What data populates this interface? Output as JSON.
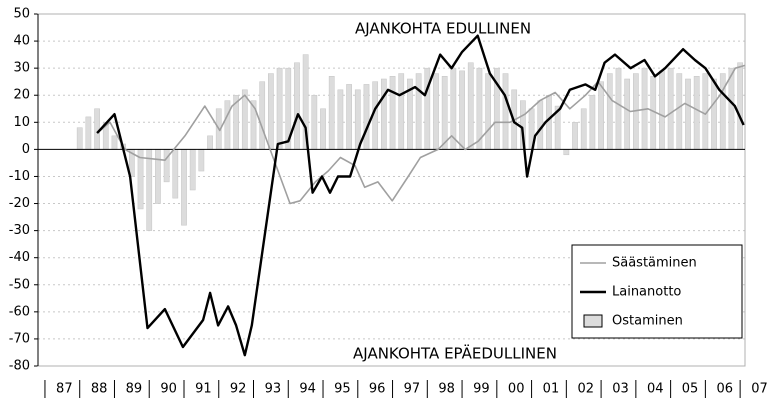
{
  "chart_data": {
    "type": "line",
    "annotations": [
      "AJANKOHTA EDULLINEN",
      "AJANKOHTA EPÄEDULLINEN"
    ],
    "ylim": [
      -80,
      50
    ],
    "yticks": [
      -80,
      -70,
      -60,
      -50,
      -40,
      -30,
      -20,
      -10,
      0,
      10,
      20,
      30,
      40,
      50
    ],
    "xlim": [
      1986.8,
      2007.14
    ],
    "xticks": [
      {
        "value": 1987.5,
        "label": "87"
      },
      {
        "value": 1988.5,
        "label": "88"
      },
      {
        "value": 1989.5,
        "label": "89"
      },
      {
        "value": 1990.5,
        "label": "90"
      },
      {
        "value": 1991.5,
        "label": "91"
      },
      {
        "value": 1992.5,
        "label": "92"
      },
      {
        "value": 1993.5,
        "label": "93"
      },
      {
        "value": 1994.5,
        "label": "94"
      },
      {
        "value": 1995.5,
        "label": "95"
      },
      {
        "value": 1996.5,
        "label": "96"
      },
      {
        "value": 1997.5,
        "label": "97"
      },
      {
        "value": 1998.5,
        "label": "98"
      },
      {
        "value": 1999.5,
        "label": "99"
      },
      {
        "value": 2000.5,
        "label": "00"
      },
      {
        "value": 2001.5,
        "label": "01"
      },
      {
        "value": 2002.5,
        "label": "02"
      },
      {
        "value": 2003.5,
        "label": "03"
      },
      {
        "value": 2004.5,
        "label": "04"
      },
      {
        "value": 2005.5,
        "label": "05"
      },
      {
        "value": 2006.5,
        "label": "06"
      },
      {
        "value": 2007.5,
        "label": "07"
      }
    ],
    "grid": true,
    "legend": "lower right",
    "series": [
      {
        "name": "Säästäminen",
        "kind": "line",
        "color": "#a0a0a0",
        "x": [
          1988.5,
          1988.87,
          1989.3,
          1989.73,
          1990.45,
          1991.03,
          1991.6,
          1992.03,
          1992.38,
          1992.75,
          1993.05,
          1993.42,
          1994.05,
          1994.34,
          1994.78,
          1995.15,
          1995.5,
          1995.92,
          1996.2,
          1996.58,
          1996.99,
          1997.45,
          1997.8,
          1998.31,
          1998.7,
          1999.09,
          1999.46,
          1999.95,
          2000.38,
          2000.81,
          2001.24,
          2001.68,
          2002.1,
          2002.55,
          2002.91,
          2003.32,
          2003.84,
          2004.35,
          2004.84,
          2005.41,
          2006.0,
          2006.42,
          2006.86,
          2007.14
        ],
        "values": [
          6,
          10,
          0,
          -3,
          -4,
          5,
          16,
          7,
          16,
          20,
          15,
          2,
          -20,
          -19,
          -12,
          -8,
          -3,
          -6,
          -14,
          -12,
          -19,
          -10,
          -3,
          0,
          5,
          0,
          3,
          10,
          10,
          13,
          18,
          21,
          15,
          20,
          25,
          18,
          14,
          15,
          12,
          17,
          13,
          20,
          30,
          31
        ]
      },
      {
        "name": "Lainanotto",
        "kind": "line",
        "color": "#000000",
        "x": [
          1988.5,
          1989.0,
          1989.45,
          1989.95,
          1990.45,
          1990.97,
          1991.55,
          1991.75,
          1991.98,
          1992.27,
          1992.5,
          1992.75,
          1992.95,
          1993.7,
          1994.0,
          1994.28,
          1994.5,
          1994.7,
          1994.97,
          1995.2,
          1995.43,
          1995.78,
          1996.07,
          1996.5,
          1996.87,
          1997.2,
          1997.65,
          1997.93,
          1998.37,
          1998.7,
          1999.0,
          1999.45,
          1999.8,
          2000.23,
          2000.5,
          2000.73,
          2000.87,
          2001.1,
          2001.4,
          2001.82,
          2002.1,
          2002.55,
          2002.83,
          2003.1,
          2003.4,
          2003.85,
          2004.25,
          2004.55,
          2004.84,
          2005.36,
          2005.7,
          2006.0,
          2006.4,
          2006.85,
          2007.1
        ],
        "values": [
          6,
          13,
          -10,
          -66,
          -59,
          -73,
          -63,
          -53,
          -65,
          -58,
          -65,
          -76,
          -65,
          2,
          3,
          13,
          8,
          -16,
          -10,
          -16,
          -10,
          -10,
          2,
          15,
          22,
          20,
          23,
          20,
          35,
          30,
          36,
          42,
          28,
          20,
          10,
          8,
          -10,
          5,
          10,
          15,
          22,
          24,
          22,
          32,
          35,
          30,
          33,
          27,
          30,
          37,
          33,
          30,
          22,
          16,
          9
        ]
      },
      {
        "name": "Ostaminen",
        "kind": "bar",
        "color": "#dcdcdc",
        "x": [
          1988.0,
          1988.25,
          1988.5,
          1988.75,
          1989.0,
          1989.25,
          1989.5,
          1989.75,
          1990.0,
          1990.25,
          1990.5,
          1990.75,
          1991.0,
          1991.25,
          1991.5,
          1991.75,
          1992.0,
          1992.25,
          1992.5,
          1992.75,
          1993.0,
          1993.25,
          1993.5,
          1993.75,
          1994.0,
          1994.25,
          1994.5,
          1994.75,
          1995.0,
          1995.25,
          1995.5,
          1995.75,
          1996.0,
          1996.25,
          1996.5,
          1996.75,
          1997.0,
          1997.25,
          1997.5,
          1997.75,
          1998.0,
          1998.25,
          1998.5,
          1998.75,
          1999.0,
          1999.25,
          1999.5,
          1999.75,
          2000.0,
          2000.25,
          2000.5,
          2000.75,
          2001.0,
          2001.25,
          2001.5,
          2001.75,
          2002.0,
          2002.25,
          2002.5,
          2002.75,
          2003.0,
          2003.25,
          2003.5,
          2003.75,
          2004.0,
          2004.25,
          2004.5,
          2004.75,
          2005.0,
          2005.25,
          2005.5,
          2005.75,
          2006.0,
          2006.25,
          2006.5,
          2006.75,
          2007.0
        ],
        "values": [
          8,
          12,
          15,
          10,
          5,
          2,
          -10,
          -22,
          -30,
          -20,
          -12,
          -18,
          -28,
          -15,
          -8,
          5,
          15,
          18,
          20,
          22,
          18,
          25,
          28,
          30,
          30,
          32,
          35,
          20,
          15,
          27,
          22,
          24,
          22,
          24,
          25,
          26,
          27,
          28,
          26,
          28,
          30,
          28,
          27,
          30,
          29,
          32,
          30,
          28,
          30,
          28,
          22,
          18,
          15,
          18,
          20,
          16,
          -2,
          10,
          15,
          20,
          25,
          28,
          30,
          26,
          28,
          30,
          27,
          29,
          30,
          28,
          26,
          27,
          28,
          26,
          28,
          30,
          32
        ]
      }
    ]
  }
}
